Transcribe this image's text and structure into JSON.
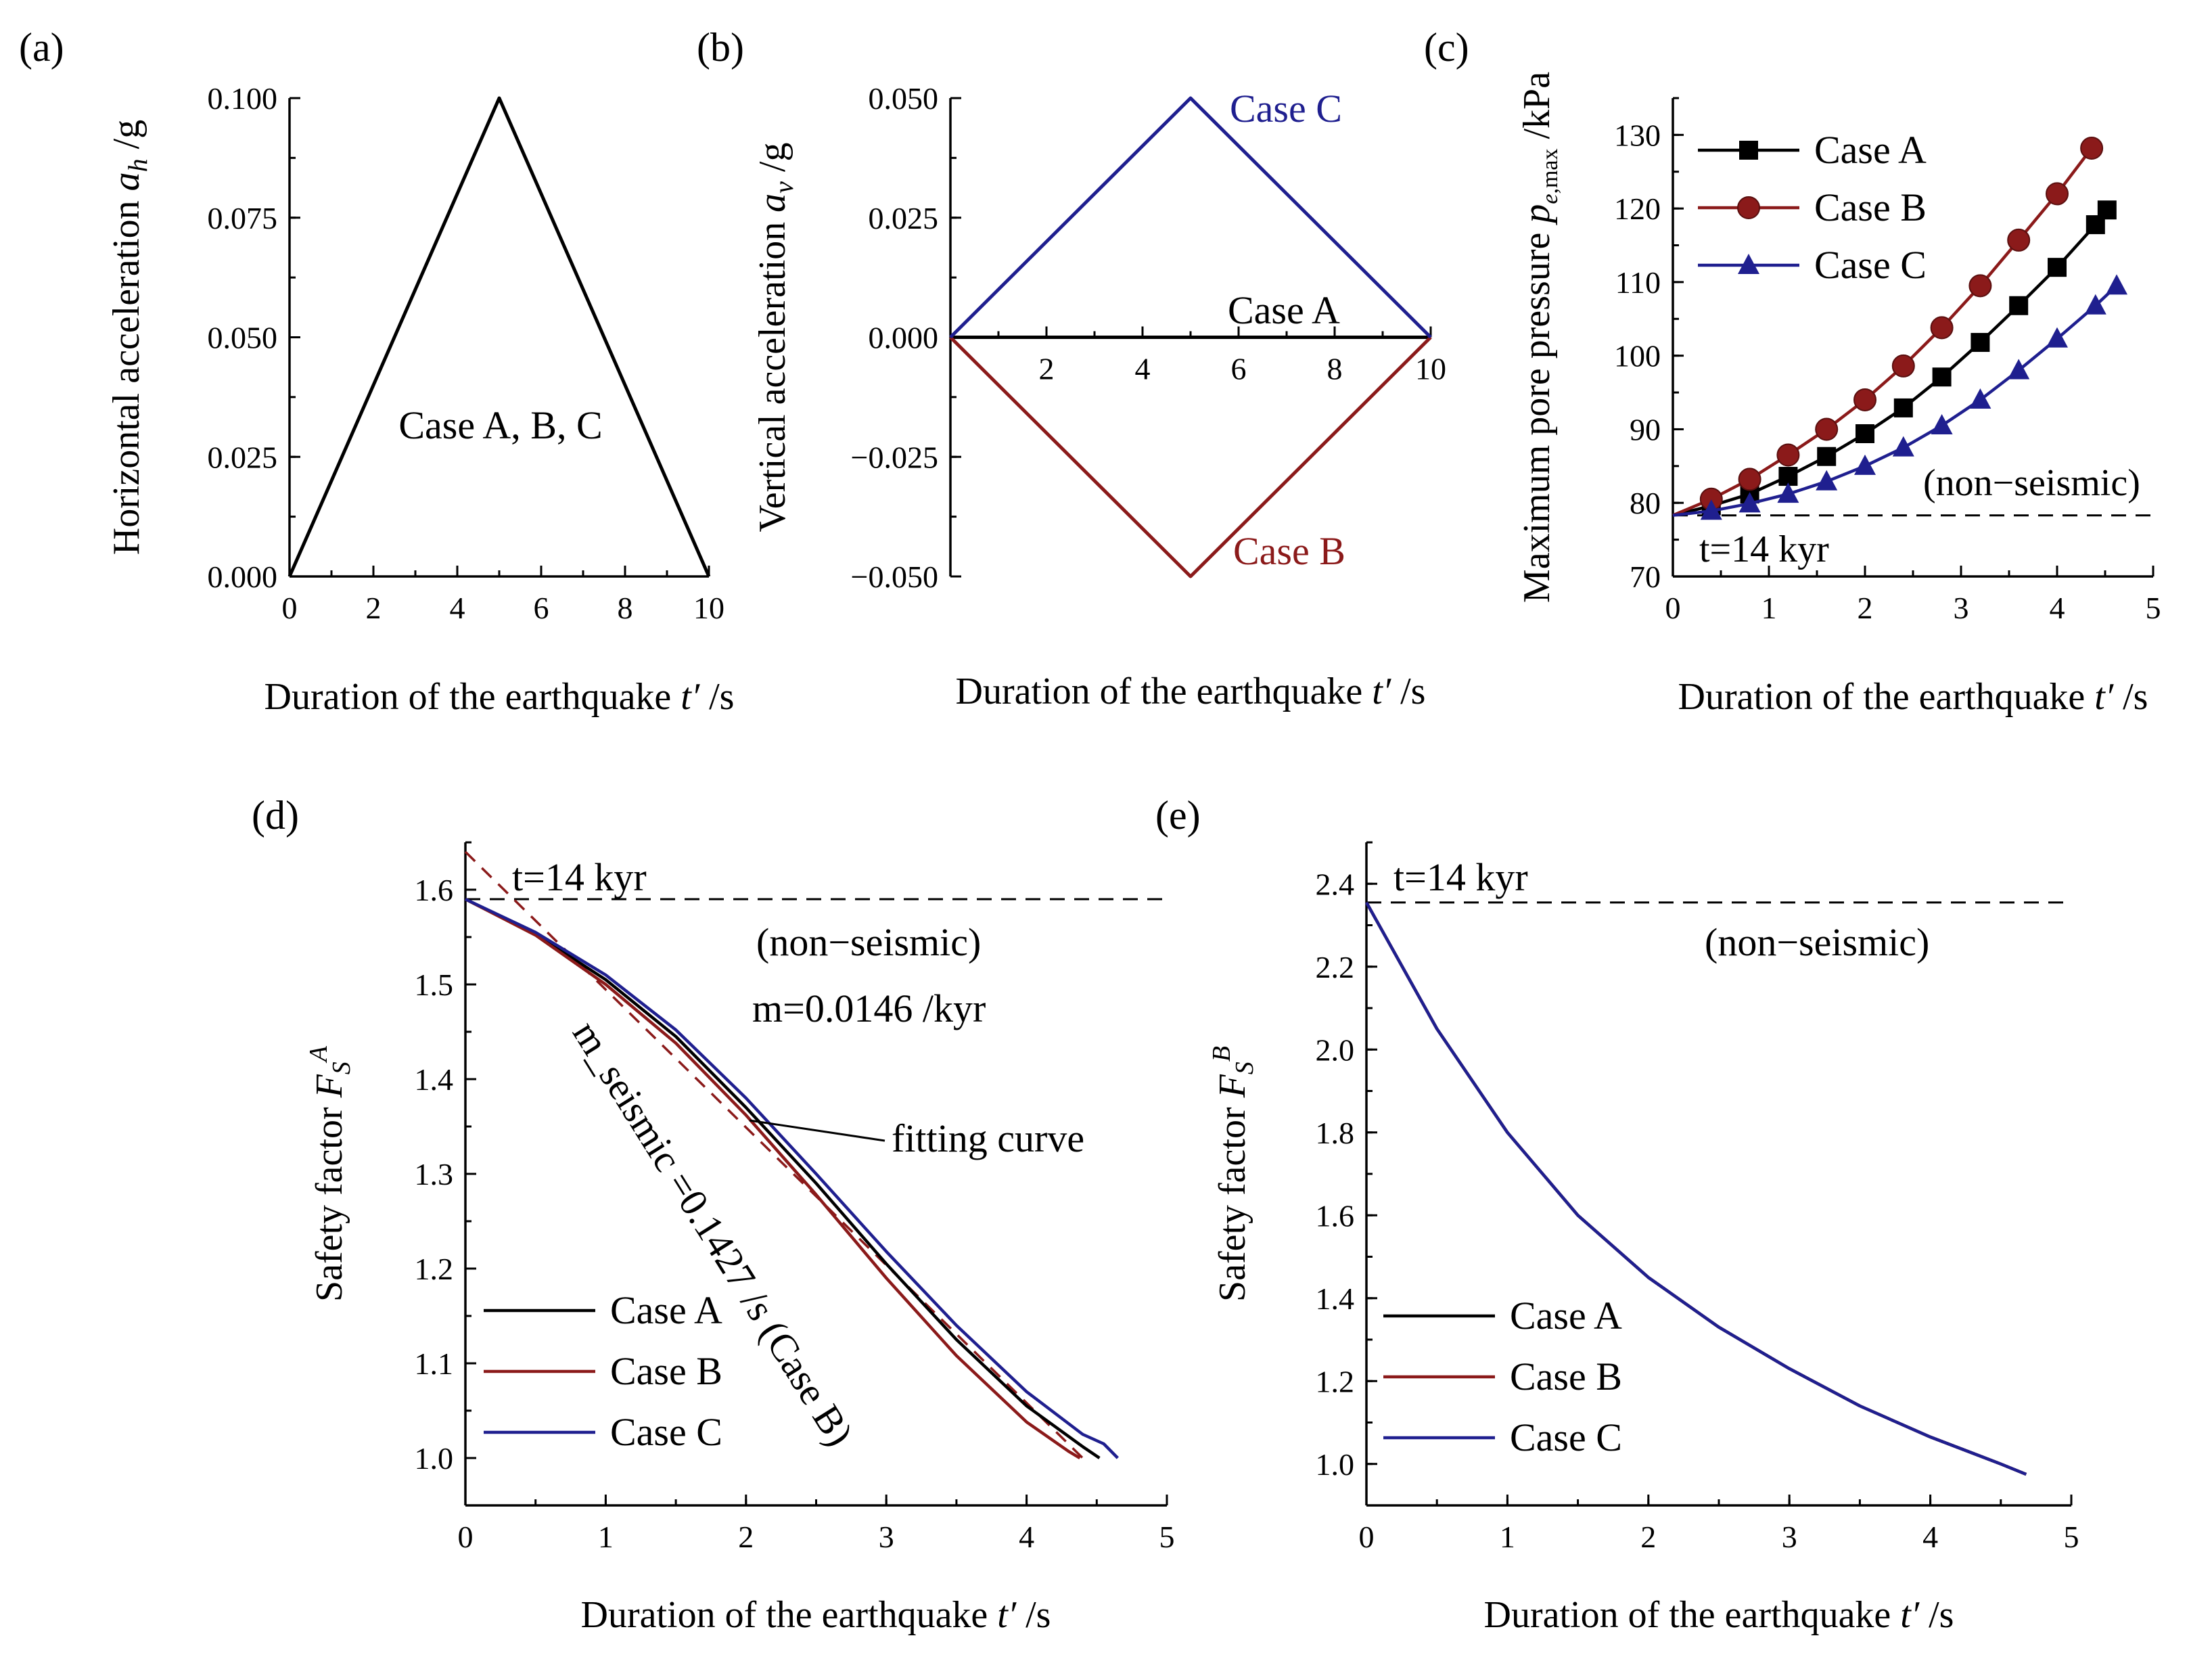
{
  "chart_data": [
    {
      "id": "a",
      "panel_label": "(a)",
      "type": "line",
      "xlabel": "Duration of the earthquake t′ /s",
      "ylabel": "Horizontal acceleration a_h /g",
      "xlim": [
        0,
        10
      ],
      "ylim": [
        0,
        0.1
      ],
      "x_ticks": [
        "0",
        "2",
        "4",
        "6",
        "8",
        "10"
      ],
      "y_ticks": [
        "0.000",
        "0.025",
        "0.050",
        "0.075",
        "0.100"
      ],
      "series": [
        {
          "name": "Case A, B, C",
          "color": "#000000",
          "x": [
            0,
            5,
            10
          ],
          "y": [
            0,
            0.1,
            0
          ]
        }
      ],
      "annotations": [
        "Case A, B, C"
      ]
    },
    {
      "id": "b",
      "panel_label": "(b)",
      "type": "line",
      "xlabel": "Duration of the earthquake t′ /s",
      "ylabel": "Vertical acceleration a_v /g",
      "xlim": [
        0,
        10
      ],
      "ylim": [
        -0.05,
        0.05
      ],
      "x_ticks": [
        "2",
        "4",
        "6",
        "8",
        "10"
      ],
      "y_ticks": [
        "−0.050",
        "−0.025",
        "0.000",
        "0.025",
        "0.050"
      ],
      "series": [
        {
          "name": "Case A",
          "color": "#000000",
          "x": [
            0,
            10
          ],
          "y": [
            0,
            0
          ]
        },
        {
          "name": "Case B",
          "color": "#8b1a1a",
          "x": [
            0,
            5,
            10
          ],
          "y": [
            0,
            -0.05,
            0
          ]
        },
        {
          "name": "Case C",
          "color": "#1f1f8f",
          "x": [
            0,
            5,
            10
          ],
          "y": [
            0,
            0.05,
            0
          ]
        }
      ],
      "annotations": [
        "Case A",
        "Case B",
        "Case C"
      ]
    },
    {
      "id": "c",
      "panel_label": "(c)",
      "type": "line",
      "xlabel": "Duration of the earthquake t′ /s",
      "ylabel": "Maximum pore pressure p_e,max /kPa",
      "xlim": [
        0,
        5
      ],
      "ylim": [
        70,
        135
      ],
      "x_ticks": [
        "0",
        "1",
        "2",
        "3",
        "4",
        "5"
      ],
      "y_ticks": [
        "70",
        "80",
        "90",
        "100",
        "110",
        "120",
        "130"
      ],
      "baseline": {
        "value": 78.3,
        "label_top": "(non−seismic)",
        "label_bottom": "t=14 kyr"
      },
      "legend": [
        "Case A",
        "Case B",
        "Case C"
      ],
      "series": [
        {
          "name": "Case A",
          "color": "#000000",
          "marker": "square",
          "x": [
            0,
            0.4,
            0.8,
            1.2,
            1.6,
            2.0,
            2.4,
            2.8,
            3.2,
            3.6,
            4.0,
            4.4,
            4.52
          ],
          "y": [
            78.3,
            79.6,
            81.2,
            83.6,
            86.3,
            89.4,
            92.9,
            97.1,
            101.8,
            106.8,
            112.0,
            117.8,
            119.8
          ]
        },
        {
          "name": "Case B",
          "color": "#8b1a1a",
          "marker": "circle",
          "x": [
            0,
            0.4,
            0.8,
            1.2,
            1.6,
            2.0,
            2.4,
            2.8,
            3.2,
            3.6,
            4.0,
            4.36
          ],
          "y": [
            78.3,
            80.5,
            83.2,
            86.5,
            90.0,
            94.0,
            98.6,
            103.8,
            109.5,
            115.7,
            122.0,
            128.2
          ]
        },
        {
          "name": "Case C",
          "color": "#1f1f8f",
          "marker": "triangle",
          "x": [
            0,
            0.4,
            0.8,
            1.2,
            1.6,
            2.0,
            2.4,
            2.8,
            3.2,
            3.6,
            4.0,
            4.4,
            4.62
          ],
          "y": [
            78.3,
            78.9,
            79.9,
            81.2,
            82.9,
            85.0,
            87.5,
            90.5,
            94.0,
            98.0,
            102.3,
            106.8,
            109.5
          ]
        }
      ]
    },
    {
      "id": "d",
      "panel_label": "(d)",
      "type": "line",
      "xlabel": "Duration of the earthquake t′ /s",
      "ylabel": "Safety factor F_S^A",
      "xlim": [
        0,
        5
      ],
      "ylim": [
        0.95,
        1.65
      ],
      "x_ticks": [
        "0",
        "1",
        "2",
        "3",
        "4",
        "5"
      ],
      "y_ticks": [
        "1.0",
        "1.1",
        "1.2",
        "1.3",
        "1.4",
        "1.5",
        "1.6"
      ],
      "baseline": {
        "value": 1.59,
        "label_top": "t=14 kyr",
        "label_bottom": "(non−seismic)"
      },
      "annotations": [
        "m=0.0146 /kyr",
        "m_seismic =0.1427 /s (Case B)",
        "fitting curve"
      ],
      "legend": [
        "Case A",
        "Case B",
        "Case C"
      ],
      "fitting_line": {
        "color": "#8b1a1a",
        "dash": true,
        "x": [
          0,
          4.4
        ],
        "y": [
          1.64,
          1.0
        ]
      },
      "series": [
        {
          "name": "Case A",
          "color": "#000000",
          "x": [
            0,
            0.5,
            1.0,
            1.5,
            2.0,
            2.5,
            3.0,
            3.5,
            4.0,
            4.4,
            4.52
          ],
          "y": [
            1.59,
            1.553,
            1.505,
            1.445,
            1.37,
            1.29,
            1.205,
            1.125,
            1.055,
            1.012,
            1.0
          ]
        },
        {
          "name": "Case B",
          "color": "#8b1a1a",
          "x": [
            0,
            0.5,
            1.0,
            1.5,
            2.0,
            2.5,
            3.0,
            3.5,
            4.0,
            4.3,
            4.38
          ],
          "y": [
            1.59,
            1.552,
            1.5,
            1.438,
            1.362,
            1.278,
            1.19,
            1.108,
            1.038,
            1.007,
            1.0
          ]
        },
        {
          "name": "Case C",
          "color": "#1f1f8f",
          "x": [
            0,
            0.5,
            1.0,
            1.5,
            2.0,
            2.5,
            3.0,
            3.5,
            4.0,
            4.4,
            4.55,
            4.65
          ],
          "y": [
            1.59,
            1.555,
            1.51,
            1.452,
            1.38,
            1.3,
            1.218,
            1.14,
            1.07,
            1.025,
            1.015,
            1.0
          ]
        }
      ]
    },
    {
      "id": "e",
      "panel_label": "(e)",
      "type": "line",
      "xlabel": "Duration of the earthquake t′ /s",
      "ylabel": "Safety factor F_S^B",
      "xlim": [
        0,
        5
      ],
      "ylim": [
        0.9,
        2.5
      ],
      "x_ticks": [
        "0",
        "1",
        "2",
        "3",
        "4",
        "5"
      ],
      "y_ticks": [
        "1.0",
        "1.2",
        "1.4",
        "1.6",
        "1.8",
        "2.0",
        "2.2",
        "2.4"
      ],
      "baseline": {
        "value": 2.355,
        "label_top": "t=14 kyr",
        "label_bottom": "(non−seismic)"
      },
      "legend": [
        "Case A",
        "Case B",
        "Case C"
      ],
      "series": [
        {
          "name": "Case A",
          "color": "#000000",
          "x": [
            0,
            0.5,
            1.0,
            1.5,
            2.0,
            2.5,
            3.0,
            3.5,
            4.0,
            4.5,
            4.68
          ],
          "y": [
            2.355,
            2.05,
            1.8,
            1.6,
            1.45,
            1.33,
            1.23,
            1.14,
            1.065,
            1.0,
            0.975
          ]
        },
        {
          "name": "Case B",
          "color": "#8b1a1a",
          "x": [
            0,
            0.5,
            1.0,
            1.5,
            2.0,
            2.5,
            3.0,
            3.5,
            4.0,
            4.5,
            4.68
          ],
          "y": [
            2.355,
            2.05,
            1.8,
            1.6,
            1.45,
            1.33,
            1.23,
            1.14,
            1.065,
            1.0,
            0.975
          ]
        },
        {
          "name": "Case C",
          "color": "#1f1f8f",
          "x": [
            0,
            0.5,
            1.0,
            1.5,
            2.0,
            2.5,
            3.0,
            3.5,
            4.0,
            4.5,
            4.68
          ],
          "y": [
            2.355,
            2.05,
            1.8,
            1.6,
            1.45,
            1.33,
            1.23,
            1.14,
            1.065,
            1.0,
            0.975
          ]
        }
      ]
    }
  ]
}
